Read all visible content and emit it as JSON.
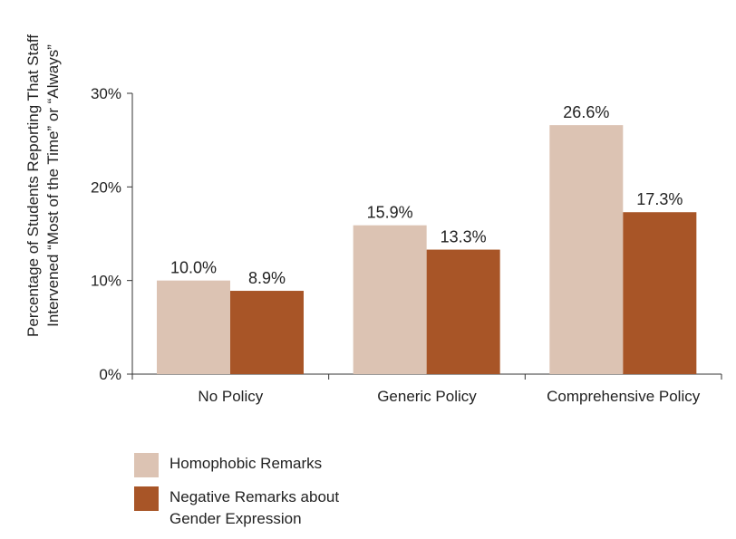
{
  "chart_data": {
    "type": "bar",
    "categories": [
      "No Policy",
      "Generic Policy",
      "Comprehensive Policy"
    ],
    "series": [
      {
        "name": "Homophobic Remarks",
        "values": [
          10.0,
          15.9,
          26.6
        ],
        "labels": [
          "10.0%",
          "15.9%",
          "26.6%"
        ],
        "color": "#dcc3b3"
      },
      {
        "name": "Negative Remarks about\nGender Expression",
        "values": [
          8.9,
          13.3,
          17.3
        ],
        "labels": [
          "8.9%",
          "13.3%",
          "17.3%"
        ],
        "color": "#a85527"
      }
    ],
    "ylabel_lines": [
      "Percentage of Students Reporting That Staff",
      "Intervened “Most of the Time” or “Always”"
    ],
    "xlabel": "",
    "ylim": [
      0,
      30
    ],
    "yticks": [
      0,
      10,
      20,
      30
    ],
    "ytick_labels": [
      "0%",
      "10%",
      "20%",
      "30%"
    ],
    "grid": false,
    "legend_position": "bottom-left"
  }
}
